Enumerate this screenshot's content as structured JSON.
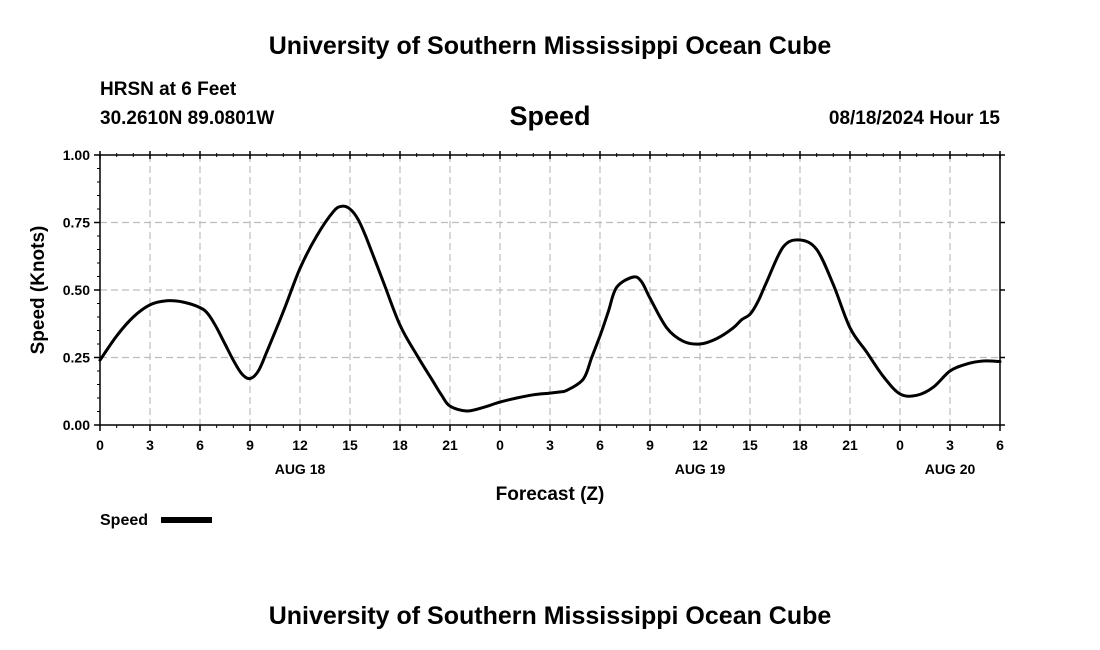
{
  "header": {
    "title": "University of Southern Mississippi Ocean Cube",
    "station": "HRSN at 6 Feet",
    "coords": "30.2610N  89.0801W",
    "date": "08/18/2024 Hour 15"
  },
  "footer": {
    "title": "University of Southern Mississippi Ocean Cube"
  },
  "chart_data": {
    "type": "line",
    "title": "Speed",
    "xlabel": "Forecast (Z)",
    "ylabel": "Speed (Knots)",
    "ylim": [
      0,
      1
    ],
    "yticks": [
      "0.00",
      "0.25",
      "0.50",
      "0.75",
      "1.00"
    ],
    "xlim": [
      0,
      54
    ],
    "xtick_labels": [
      "0",
      "3",
      "6",
      "9",
      "12",
      "15",
      "18",
      "21",
      "0",
      "3",
      "6",
      "9",
      "12",
      "15",
      "18",
      "21",
      "0",
      "3",
      "6"
    ],
    "date_labels": [
      {
        "hour": 12,
        "label": "AUG 18"
      },
      {
        "hour": 36,
        "label": "AUG 19"
      },
      {
        "hour": 51,
        "label": "AUG 20"
      }
    ],
    "grid": true,
    "legend_position": "bottom-left",
    "series": [
      {
        "name": "Speed",
        "color": "#000000",
        "x": [
          0,
          1,
          2,
          3,
          4,
          5,
          6,
          6.5,
          7,
          7.5,
          8,
          8.5,
          9,
          9.5,
          10,
          11,
          12,
          13,
          14,
          14.5,
          15,
          15.5,
          16,
          17,
          18,
          19,
          20,
          20.5,
          21,
          22,
          23,
          24,
          25,
          26,
          27,
          27.5,
          28,
          29,
          29.5,
          30,
          30.5,
          31,
          32,
          32.5,
          33,
          34,
          35,
          36,
          37,
          38,
          38.5,
          39,
          39.5,
          40,
          41,
          42,
          43,
          44,
          45,
          46,
          47,
          48,
          49,
          50,
          51,
          52,
          53,
          54
        ],
        "y": [
          0.24,
          0.33,
          0.4,
          0.445,
          0.46,
          0.455,
          0.435,
          0.41,
          0.36,
          0.3,
          0.24,
          0.19,
          0.172,
          0.2,
          0.27,
          0.42,
          0.58,
          0.7,
          0.79,
          0.81,
          0.8,
          0.76,
          0.69,
          0.53,
          0.37,
          0.26,
          0.16,
          0.11,
          0.07,
          0.052,
          0.065,
          0.085,
          0.1,
          0.112,
          0.118,
          0.122,
          0.128,
          0.17,
          0.25,
          0.33,
          0.42,
          0.51,
          0.548,
          0.53,
          0.47,
          0.36,
          0.31,
          0.3,
          0.32,
          0.36,
          0.39,
          0.41,
          0.46,
          0.53,
          0.66,
          0.685,
          0.65,
          0.52,
          0.36,
          0.27,
          0.18,
          0.115,
          0.11,
          0.14,
          0.2,
          0.226,
          0.237,
          0.235
        ]
      }
    ]
  }
}
